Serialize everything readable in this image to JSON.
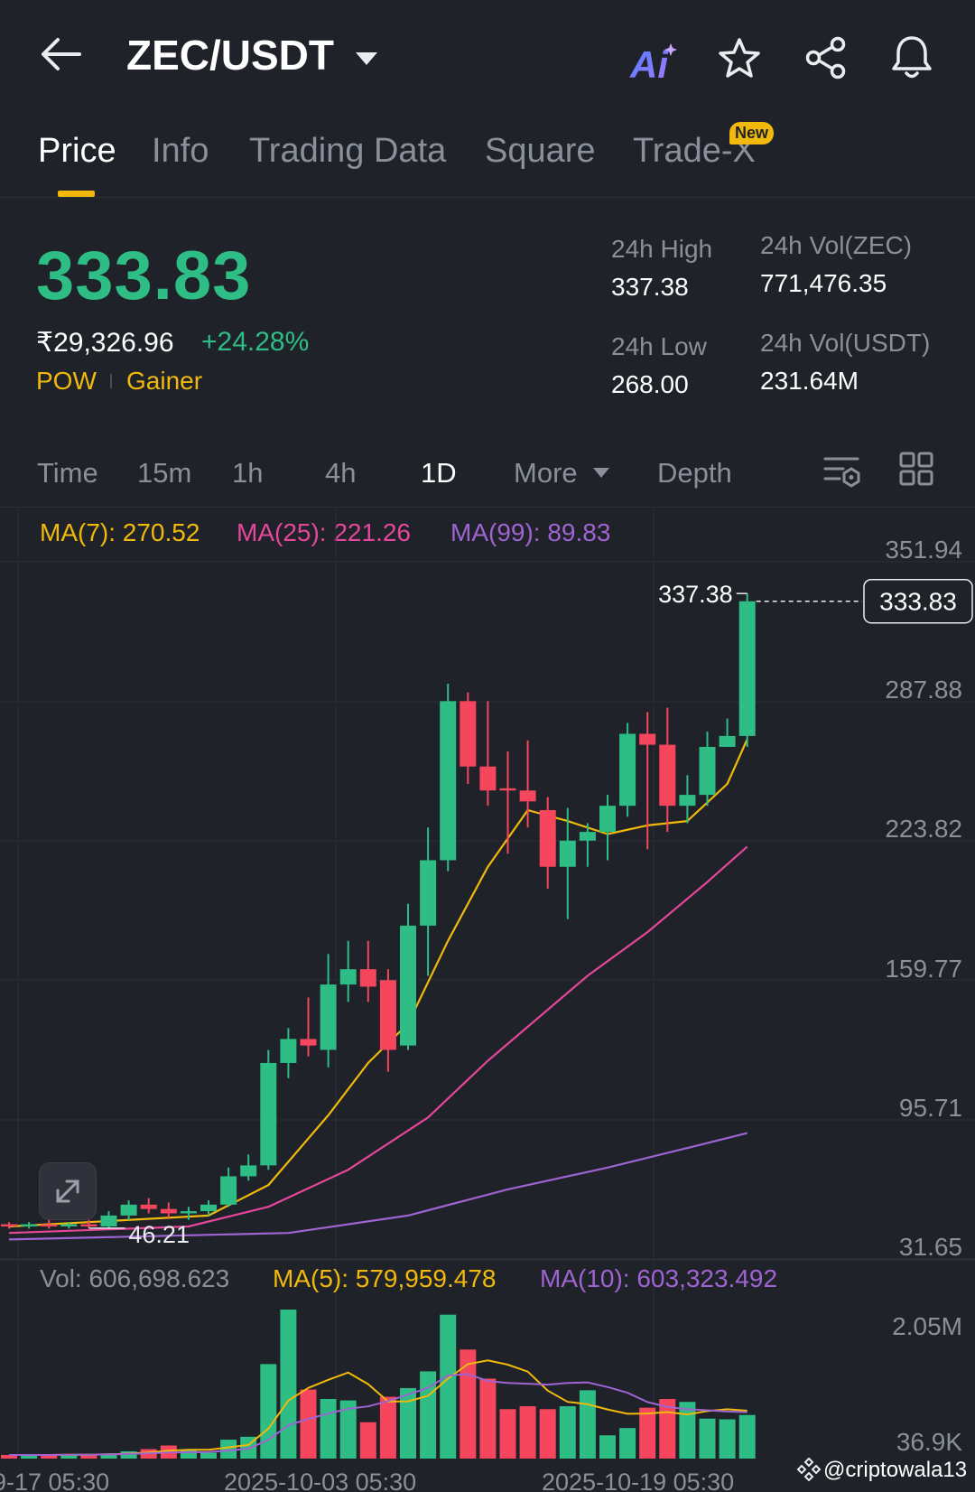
{
  "header": {
    "pair": "ZEC/USDT",
    "icons": [
      "back-arrow-icon",
      "ai-icon",
      "star-icon",
      "share-icon",
      "bell-icon"
    ]
  },
  "tabs": [
    {
      "label": "Price",
      "active": true
    },
    {
      "label": "Info",
      "active": false
    },
    {
      "label": "Trading Data",
      "active": false
    },
    {
      "label": "Square",
      "active": false
    },
    {
      "label": "Trade-X",
      "active": false,
      "badge": "New"
    }
  ],
  "ticker": {
    "price": "333.83",
    "fiat_price": "₹29,326.96",
    "change": "+24.28%",
    "tag_1": "POW",
    "tag_2": "Gainer",
    "high_label": "24h High",
    "high_value": "337.38",
    "low_label": "24h Low",
    "low_value": "268.00",
    "vol_base_label": "24h Vol(ZEC)",
    "vol_base_value": "771,476.35",
    "vol_quote_label": "24h Vol(USDT)",
    "vol_quote_value": "231.64M"
  },
  "timeframes": {
    "time": "Time",
    "m15": "15m",
    "h1": "1h",
    "h4": "4h",
    "d1": "1D",
    "more": "More",
    "depth": "Depth",
    "active": "1D"
  },
  "ma_legend": {
    "ma7": "MA(7): 270.52",
    "ma25": "MA(25): 221.26",
    "ma99": "MA(99): 89.83"
  },
  "vol_legend": {
    "vol": "Vol: 606,698.623",
    "ma5": "MA(5): 579,959.478",
    "ma10": "MA(10): 603,323.492"
  },
  "watermark": "@criptowala13",
  "colors": {
    "up": "#2ebd85",
    "down": "#f6465d",
    "ma7": "#f0b90b",
    "ma25": "#e6479a",
    "ma99": "#9f64d2",
    "background": "#1f2229"
  },
  "chart_data": {
    "type": "candlestick",
    "y_ticks": [
      "351.94",
      "287.88",
      "223.82",
      "159.77",
      "95.71",
      "31.65"
    ],
    "ylim": [
      31.65,
      351.94
    ],
    "x_ticks": [
      "9-17 05:30",
      "2025-10-03 05:30",
      "2025-10-19 05:30"
    ],
    "last_price_label": "333.83",
    "high_marker": "337.38",
    "low_marker": "46.21",
    "candles": [
      {
        "o": 48,
        "h": 49,
        "l": 46,
        "c": 47
      },
      {
        "o": 47,
        "h": 49,
        "l": 46,
        "c": 48
      },
      {
        "o": 48,
        "h": 50,
        "l": 46,
        "c": 47
      },
      {
        "o": 47,
        "h": 49,
        "l": 46,
        "c": 48
      },
      {
        "o": 48,
        "h": 50,
        "l": 46.21,
        "c": 47
      },
      {
        "o": 47,
        "h": 54,
        "l": 46,
        "c": 52
      },
      {
        "o": 52,
        "h": 59,
        "l": 50,
        "c": 57
      },
      {
        "o": 57,
        "h": 60,
        "l": 53,
        "c": 55
      },
      {
        "o": 55,
        "h": 58,
        "l": 51,
        "c": 53
      },
      {
        "o": 53,
        "h": 56,
        "l": 50,
        "c": 54
      },
      {
        "o": 54,
        "h": 59,
        "l": 52,
        "c": 57
      },
      {
        "o": 57,
        "h": 74,
        "l": 56,
        "c": 70
      },
      {
        "o": 70,
        "h": 80,
        "l": 68,
        "c": 75
      },
      {
        "o": 75,
        "h": 128,
        "l": 73,
        "c": 122
      },
      {
        "o": 122,
        "h": 138,
        "l": 115,
        "c": 133
      },
      {
        "o": 133,
        "h": 152,
        "l": 125,
        "c": 130
      },
      {
        "o": 128,
        "h": 172,
        "l": 120,
        "c": 158
      },
      {
        "o": 158,
        "h": 178,
        "l": 150,
        "c": 165
      },
      {
        "o": 165,
        "h": 178,
        "l": 150,
        "c": 157
      },
      {
        "o": 160,
        "h": 165,
        "l": 118,
        "c": 128
      },
      {
        "o": 130,
        "h": 195,
        "l": 128,
        "c": 185
      },
      {
        "o": 185,
        "h": 230,
        "l": 162,
        "c": 215
      },
      {
        "o": 215,
        "h": 296,
        "l": 210,
        "c": 288
      },
      {
        "o": 288,
        "h": 292,
        "l": 250,
        "c": 258
      },
      {
        "o": 258,
        "h": 288,
        "l": 240,
        "c": 247
      },
      {
        "o": 248,
        "h": 265,
        "l": 218,
        "c": 247
      },
      {
        "o": 247,
        "h": 270,
        "l": 230,
        "c": 242
      },
      {
        "o": 238,
        "h": 244,
        "l": 202,
        "c": 212
      },
      {
        "o": 212,
        "h": 239,
        "l": 188,
        "c": 224
      },
      {
        "o": 224,
        "h": 232,
        "l": 212,
        "c": 228
      },
      {
        "o": 228,
        "h": 245,
        "l": 215,
        "c": 240
      },
      {
        "o": 240,
        "h": 278,
        "l": 235,
        "c": 273
      },
      {
        "o": 273,
        "h": 283,
        "l": 220,
        "c": 268
      },
      {
        "o": 268,
        "h": 285,
        "l": 228,
        "c": 240
      },
      {
        "o": 240,
        "h": 254,
        "l": 232,
        "c": 245
      },
      {
        "o": 245,
        "h": 274,
        "l": 240,
        "c": 267
      },
      {
        "o": 267,
        "h": 280,
        "l": 268,
        "c": 272
      },
      {
        "o": 272,
        "h": 337.38,
        "l": 267,
        "c": 333.83
      }
    ],
    "ma7_series": [
      {
        "i": 0,
        "v": 47
      },
      {
        "i": 10,
        "v": 52
      },
      {
        "i": 13,
        "v": 66
      },
      {
        "i": 16,
        "v": 98
      },
      {
        "i": 18,
        "v": 122
      },
      {
        "i": 20,
        "v": 140
      },
      {
        "i": 22,
        "v": 178
      },
      {
        "i": 24,
        "v": 212
      },
      {
        "i": 26,
        "v": 238
      },
      {
        "i": 28,
        "v": 233
      },
      {
        "i": 30,
        "v": 227
      },
      {
        "i": 32,
        "v": 231
      },
      {
        "i": 34,
        "v": 233
      },
      {
        "i": 36,
        "v": 250
      },
      {
        "i": 37,
        "v": 270.52
      }
    ],
    "ma25_series": [
      {
        "i": 0,
        "v": 44
      },
      {
        "i": 9,
        "v": 47
      },
      {
        "i": 13,
        "v": 56
      },
      {
        "i": 17,
        "v": 73
      },
      {
        "i": 21,
        "v": 97
      },
      {
        "i": 24,
        "v": 123
      },
      {
        "i": 29,
        "v": 162
      },
      {
        "i": 32,
        "v": 182
      },
      {
        "i": 35,
        "v": 205
      },
      {
        "i": 37,
        "v": 221.26
      }
    ],
    "ma99_series": [
      {
        "i": 0,
        "v": 41
      },
      {
        "i": 14,
        "v": 44
      },
      {
        "i": 20,
        "v": 52
      },
      {
        "i": 25,
        "v": 64
      },
      {
        "i": 30,
        "v": 74
      },
      {
        "i": 34,
        "v": 83
      },
      {
        "i": 37,
        "v": 89.83
      }
    ],
    "volume": {
      "y_ticks": [
        "2.05M",
        "36.9K"
      ],
      "values": [
        0.05,
        0.05,
        0.05,
        0.06,
        0.06,
        0.07,
        0.1,
        0.13,
        0.18,
        0.12,
        0.08,
        0.26,
        0.3,
        1.3,
        2.05,
        0.95,
        0.82,
        0.8,
        0.5,
        0.85,
        0.97,
        1.2,
        1.98,
        1.5,
        1.1,
        0.68,
        0.72,
        0.68,
        0.72,
        0.94,
        0.32,
        0.42,
        0.7,
        0.82,
        0.78,
        0.55,
        0.54,
        0.6
      ]
    }
  }
}
